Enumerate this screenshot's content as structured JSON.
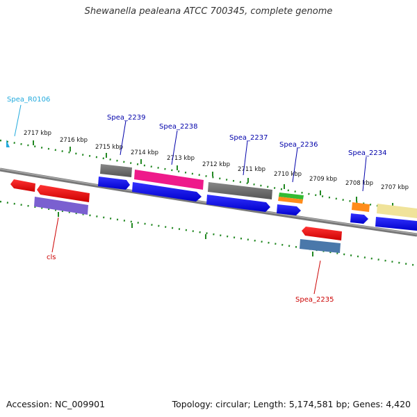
{
  "title": "Shewanella pealeana ATCC 700345, complete genome",
  "footer": {
    "accession": "Accession: NC_009901",
    "summary": "Topology: circular; Length: 5,174,581 bp; Genes: 4,420"
  },
  "kbp_ticks": [
    "2717 kbp",
    "2716 kbp",
    "2715 kbp",
    "2714 kbp",
    "2713 kbp",
    "2712 kbp",
    "2711 kbp",
    "2710 kbp",
    "2709 kbp",
    "2708 kbp",
    "2707 kbp"
  ],
  "gene_labels": {
    "rna": "Spea_R0106",
    "g2239": "Spea_2239",
    "g2238": "Spea_2238",
    "g2237": "Spea_2237",
    "g2236": "Spea_2236",
    "g2234": "Spea_2234",
    "cls": "cls",
    "g2235": "Spea_2235"
  },
  "colors": {
    "backbone": "#7a7a7a",
    "tick": "#228822",
    "forward_label": "#0000aa",
    "reverse_label": "#cc0000",
    "rna_label": "#22aadd"
  }
}
